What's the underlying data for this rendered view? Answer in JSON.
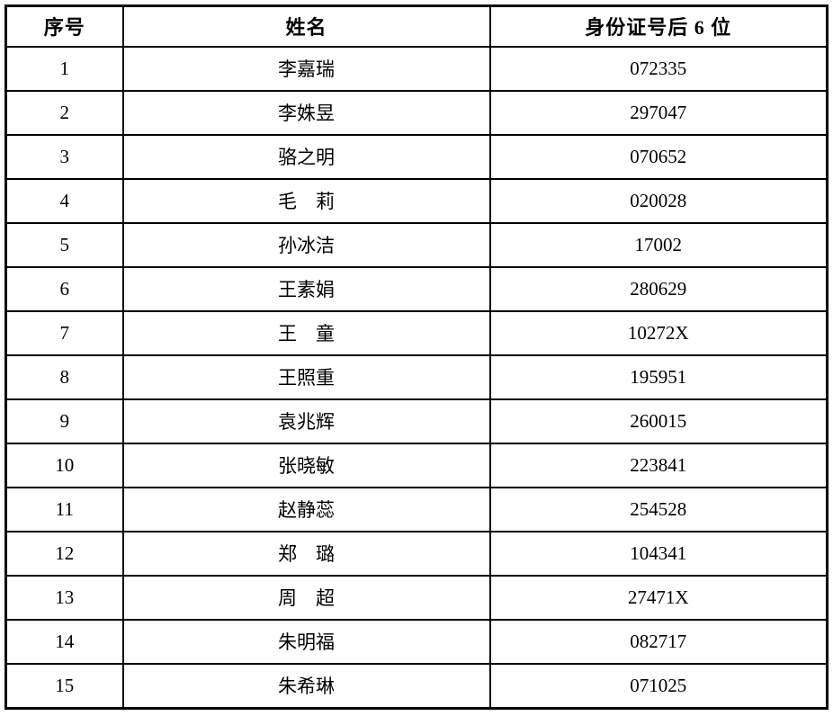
{
  "table": {
    "headers": [
      {
        "key": "index",
        "label": "序号"
      },
      {
        "key": "name",
        "label": "姓名"
      },
      {
        "key": "id_last6",
        "label": "身份证号后 6 位"
      }
    ],
    "rows": [
      {
        "index": "1",
        "name": "李嘉瑞",
        "id_last6": "072335"
      },
      {
        "index": "2",
        "name": "李姝昱",
        "id_last6": "297047"
      },
      {
        "index": "3",
        "name": "骆之明",
        "id_last6": "070652"
      },
      {
        "index": "4",
        "name": "毛　莉",
        "id_last6": "020028"
      },
      {
        "index": "5",
        "name": "孙冰洁",
        "id_last6": "17002"
      },
      {
        "index": "6",
        "name": "王素娟",
        "id_last6": "280629"
      },
      {
        "index": "7",
        "name": "王　童",
        "id_last6": "10272X"
      },
      {
        "index": "8",
        "name": "王照重",
        "id_last6": "195951"
      },
      {
        "index": "9",
        "name": "袁兆辉",
        "id_last6": "260015"
      },
      {
        "index": "10",
        "name": "张晓敏",
        "id_last6": "223841"
      },
      {
        "index": "11",
        "name": "赵静蕊",
        "id_last6": "254528"
      },
      {
        "index": "12",
        "name": "郑　璐",
        "id_last6": "104341"
      },
      {
        "index": "13",
        "name": "周　超",
        "id_last6": "27471X"
      },
      {
        "index": "14",
        "name": "朱明福",
        "id_last6": "082717"
      },
      {
        "index": "15",
        "name": "朱希琳",
        "id_last6": "071025"
      }
    ],
    "border_color": "#000000",
    "background_color": "#ffffff",
    "text_color": "#000000"
  }
}
